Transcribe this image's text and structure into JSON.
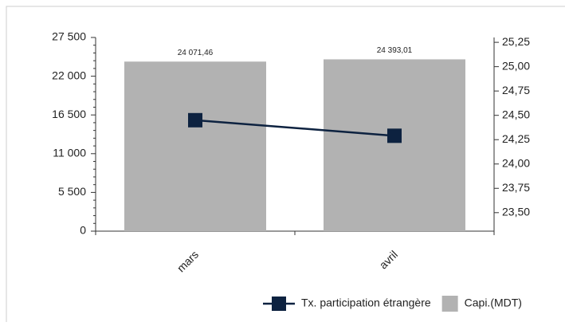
{
  "chart_data": {
    "type": "bar-line",
    "categories": [
      "mars",
      "avril"
    ],
    "series": [
      {
        "name": "Tx. participation étrangère",
        "type": "line",
        "axis": "y2",
        "color": "#0d2240",
        "values": [
          24.45,
          24.29
        ]
      },
      {
        "name": "Capi.(MDT)",
        "type": "bar",
        "color": "#b2b2b2",
        "values": [
          24071.46,
          24393.01
        ],
        "value_labels": [
          "24 071,46",
          "24 393,01"
        ]
      }
    ],
    "ylim": [
      0,
      27500
    ],
    "yticks": [
      0,
      {
        "value": 5500,
        "label": "5 500"
      },
      {
        "value": 11000,
        "label": "11 000"
      },
      {
        "value": 16500,
        "label": "16 500"
      },
      {
        "value": 22000,
        "label": "22 000"
      },
      {
        "value": 27500,
        "label": "27 500"
      }
    ],
    "y2lim": [
      23.31,
      25.3
    ],
    "y2ticks": [
      {
        "value": 23.5,
        "label": "23,50"
      },
      {
        "value": 23.75,
        "label": "23,75"
      },
      {
        "value": 24,
        "label": "24,00"
      },
      {
        "value": 24.25,
        "label": "24,25"
      },
      {
        "value": 24.5,
        "label": "24,50"
      },
      {
        "value": 24.75,
        "label": "24,75"
      },
      {
        "value": 25,
        "label": "25,00"
      },
      {
        "value": 25.25,
        "label": "25,25"
      }
    ],
    "legend": "bottom-right"
  }
}
